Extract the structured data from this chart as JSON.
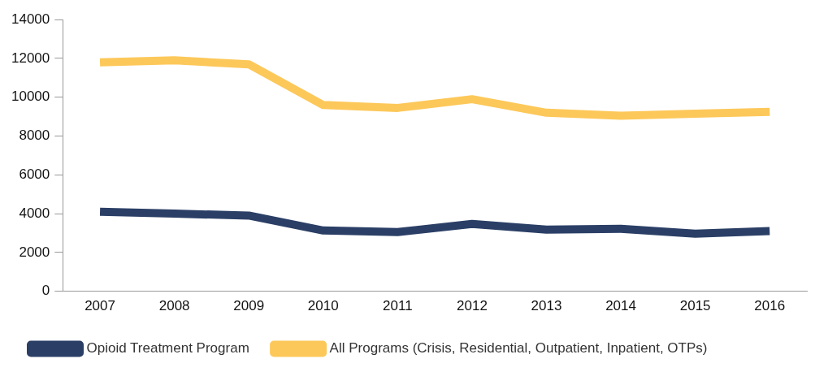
{
  "chart_data": {
    "type": "line",
    "categories": [
      "2007",
      "2008",
      "2009",
      "2010",
      "2011",
      "2012",
      "2013",
      "2014",
      "2015",
      "2016"
    ],
    "series": [
      {
        "name": "Opioid Treatment Program",
        "color": "#2b3f66",
        "values": [
          4100,
          4000,
          3900,
          3130,
          3050,
          3470,
          3180,
          3220,
          2970,
          3100
        ]
      },
      {
        "name": "All Programs (Crisis, Residential, Outpatient, Inpatient, OTPs)",
        "color": "#fdc85a",
        "values": [
          11800,
          11900,
          11700,
          9600,
          9450,
          9900,
          9200,
          9050,
          9150,
          9250
        ]
      }
    ],
    "ylim": [
      0,
      14000
    ],
    "yticks": [
      0,
      2000,
      4000,
      6000,
      8000,
      10000,
      12000,
      14000
    ],
    "grid": false,
    "legend": "bottom",
    "marker": "none",
    "line_style": "solid"
  }
}
